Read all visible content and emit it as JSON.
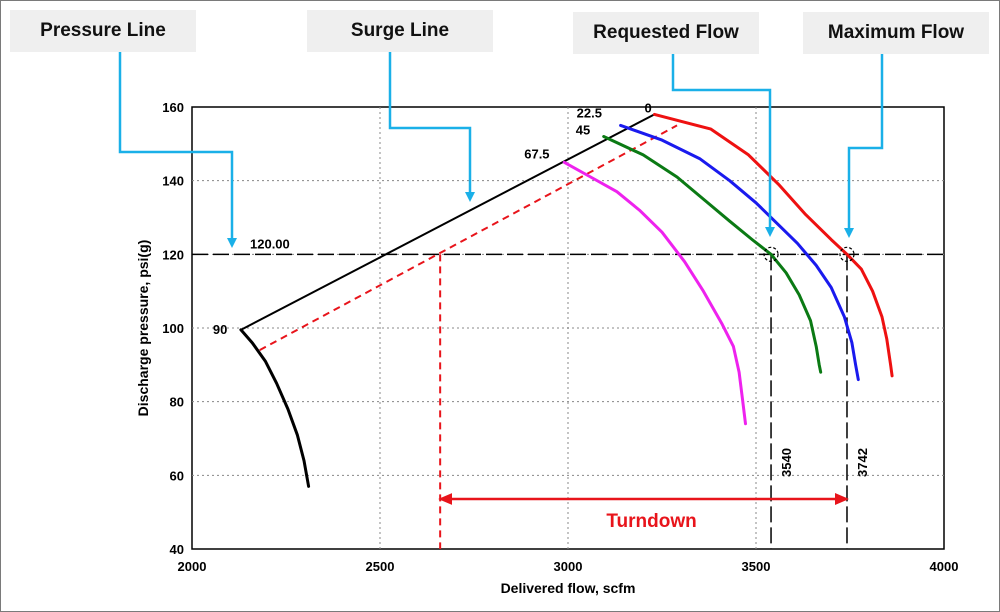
{
  "callouts": [
    {
      "text": "Pressure Line"
    },
    {
      "text": "Surge Line"
    },
    {
      "text": "Requested Flow"
    },
    {
      "text": "Maximum Flow"
    }
  ],
  "colors": {
    "callout_arrow": "#1ab0e8",
    "surge": "#000000",
    "turndown": "#e8141b",
    "curve_0": "#ee1111",
    "curve_22_5": "#1a1aee",
    "curve_45": "#0b7a14",
    "curve_67_5": "#ee22ee",
    "curve_90": "#000000"
  },
  "chart_data": {
    "type": "line",
    "title": "",
    "xlabel": "Delivered flow, scfm",
    "ylabel": "Discharge pressure, psi(g)",
    "xlim": [
      2000,
      4000
    ],
    "ylim": [
      40,
      160
    ],
    "xticks": [
      2000,
      2500,
      3000,
      3500,
      4000
    ],
    "yticks": [
      40,
      60,
      80,
      100,
      120,
      140,
      160
    ],
    "grid": true,
    "pressure_line": {
      "value": 120,
      "label": "120.00"
    },
    "requested_flow": {
      "value": 3540,
      "label": "3540"
    },
    "maximum_flow": {
      "value": 3742,
      "label": "3742"
    },
    "turndown": {
      "from": 2660,
      "to": 3742,
      "label": "Turndown"
    },
    "surge_line": [
      [
        2130,
        99.5
      ],
      [
        3230,
        158
      ]
    ],
    "red_dashed_line": [
      [
        2180,
        94
      ],
      [
        3290,
        155
      ]
    ],
    "series": [
      {
        "name": "0",
        "color": "#ee1111",
        "points": [
          [
            3230,
            158
          ],
          [
            3380,
            154
          ],
          [
            3480,
            147
          ],
          [
            3560,
            139
          ],
          [
            3630,
            131
          ],
          [
            3700,
            124
          ],
          [
            3742,
            120
          ],
          [
            3780,
            116
          ],
          [
            3810,
            110
          ],
          [
            3835,
            103
          ],
          [
            3848,
            97
          ],
          [
            3858,
            90
          ],
          [
            3862,
            87
          ]
        ]
      },
      {
        "name": "22.5",
        "color": "#1a1aee",
        "points": [
          [
            3140,
            155
          ],
          [
            3250,
            151
          ],
          [
            3350,
            146
          ],
          [
            3430,
            140
          ],
          [
            3500,
            134
          ],
          [
            3560,
            128
          ],
          [
            3610,
            123
          ],
          [
            3660,
            117
          ],
          [
            3700,
            111
          ],
          [
            3735,
            103
          ],
          [
            3755,
            96
          ],
          [
            3765,
            90
          ],
          [
            3772,
            86
          ]
        ]
      },
      {
        "name": "45",
        "color": "#0b7a14",
        "points": [
          [
            3095,
            152
          ],
          [
            3200,
            147
          ],
          [
            3290,
            141
          ],
          [
            3360,
            135
          ],
          [
            3430,
            129
          ],
          [
            3490,
            124
          ],
          [
            3540,
            120
          ],
          [
            3580,
            115
          ],
          [
            3615,
            109
          ],
          [
            3645,
            102
          ],
          [
            3660,
            95
          ],
          [
            3668,
            90
          ],
          [
            3672,
            88
          ]
        ]
      },
      {
        "name": "67.5",
        "color": "#ee22ee",
        "points": [
          [
            2990,
            145
          ],
          [
            3060,
            141
          ],
          [
            3130,
            137
          ],
          [
            3190,
            132
          ],
          [
            3250,
            126
          ],
          [
            3310,
            118
          ],
          [
            3360,
            110
          ],
          [
            3410,
            101
          ],
          [
            3440,
            95
          ],
          [
            3455,
            88
          ],
          [
            3465,
            80
          ],
          [
            3472,
            74
          ]
        ]
      },
      {
        "name": "90",
        "color": "#000000",
        "points": [
          [
            2130,
            99.5
          ],
          [
            2160,
            96
          ],
          [
            2195,
            91
          ],
          [
            2225,
            85
          ],
          [
            2255,
            78
          ],
          [
            2280,
            71
          ],
          [
            2298,
            64
          ],
          [
            2310,
            57
          ]
        ]
      }
    ]
  }
}
